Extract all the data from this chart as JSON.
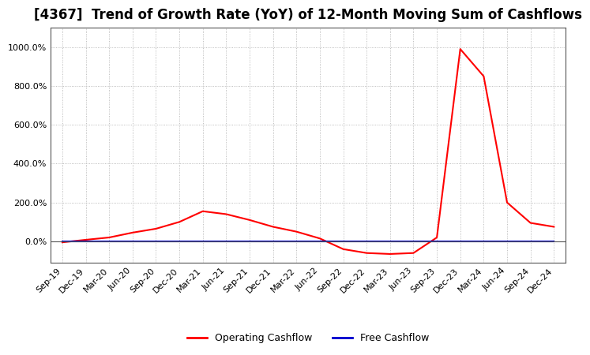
{
  "title": "[4367]  Trend of Growth Rate (YoY) of 12-Month Moving Sum of Cashflows",
  "title_fontsize": 12,
  "operating_cashflow": {
    "dates": [
      "Sep-19",
      "Dec-19",
      "Mar-20",
      "Jun-20",
      "Sep-20",
      "Dec-20",
      "Mar-21",
      "Jun-21",
      "Sep-21",
      "Dec-21",
      "Mar-22",
      "Jun-22",
      "Sep-22",
      "Dec-22",
      "Mar-23",
      "Jun-23",
      "Sep-23",
      "Dec-23",
      "Mar-24",
      "Jun-24",
      "Sep-24",
      "Dec-24"
    ],
    "values": [
      -5,
      8,
      20,
      45,
      65,
      100,
      155,
      140,
      110,
      75,
      50,
      15,
      -40,
      -60,
      -65,
      -60,
      20,
      990,
      850,
      200,
      95,
      75
    ],
    "color": "#FF0000"
  },
  "free_cashflow": {
    "dates": [
      "Sep-19",
      "Dec-19",
      "Mar-20",
      "Jun-20",
      "Sep-20",
      "Dec-20",
      "Mar-21",
      "Jun-21",
      "Sep-21",
      "Dec-21",
      "Mar-22",
      "Jun-22",
      "Sep-22",
      "Dec-22",
      "Mar-23",
      "Jun-23",
      "Sep-23",
      "Dec-23",
      "Mar-24",
      "Jun-24",
      "Sep-24",
      "Dec-24"
    ],
    "values": [
      0,
      0,
      0,
      0,
      0,
      0,
      0,
      0,
      0,
      0,
      0,
      0,
      0,
      0,
      0,
      0,
      0,
      0,
      0,
      0,
      0,
      0
    ],
    "color": "#0000CD"
  },
  "ylim": [
    -110,
    1100
  ],
  "yticks": [
    0,
    200,
    400,
    600,
    800,
    1000
  ],
  "background_color": "#FFFFFF",
  "grid_color": "#AAAAAA",
  "grid_style": ":",
  "legend_labels": [
    "Operating Cashflow",
    "Free Cashflow"
  ],
  "legend_colors": [
    "#FF0000",
    "#0000CD"
  ]
}
